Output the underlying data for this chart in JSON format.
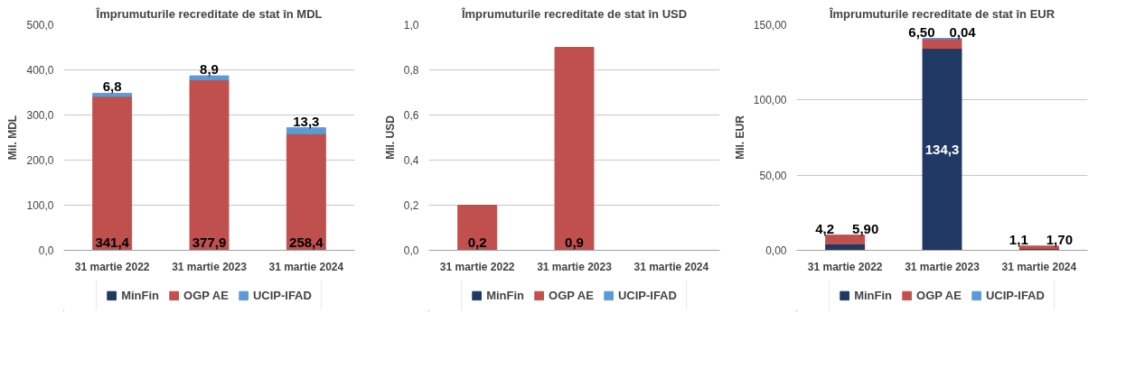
{
  "chart_data": [
    {
      "type": "bar",
      "stacked": true,
      "title": "Împrumuturile recreditate de stat în MDL",
      "ylabel": "Mil. MDL",
      "categories": [
        "31 martie 2022",
        "31 martie 2023",
        "31 martie 2024"
      ],
      "ylim": [
        0,
        500
      ],
      "yticks": [
        {
          "value": 0,
          "label": "0,0"
        },
        {
          "value": 100,
          "label": "100,0"
        },
        {
          "value": 200,
          "label": "200,0"
        },
        {
          "value": 300,
          "label": "300,0"
        },
        {
          "value": 400,
          "label": "400,0"
        },
        {
          "value": 500,
          "label": "500,0"
        }
      ],
      "grid": "y",
      "legend": "bottom",
      "series": [
        {
          "name": "MinFin",
          "color": "#1f3864",
          "values": [
            null,
            null,
            null
          ]
        },
        {
          "name": "OGP AE",
          "color": "#c0504d",
          "values": [
            341.4,
            377.9,
            258.4
          ],
          "value_labels": [
            "341,4",
            "377,9",
            "258,4"
          ]
        },
        {
          "name": "UCIP-IFAD",
          "color": "#5b9bd5",
          "values": [
            6.8,
            8.9,
            13.3
          ],
          "value_labels": [
            "6,8",
            "8,9",
            "13,3"
          ]
        }
      ]
    },
    {
      "type": "bar",
      "stacked": true,
      "title": "Împrumuturile recreditate de stat în USD",
      "ylabel": "Mil. USD",
      "categories": [
        "31 martie 2022",
        "31 martie 2023",
        "31 martie 2024"
      ],
      "ylim": [
        0,
        1
      ],
      "yticks": [
        {
          "value": 0,
          "label": "0,0"
        },
        {
          "value": 0.2,
          "label": "0,2"
        },
        {
          "value": 0.4,
          "label": "0,4"
        },
        {
          "value": 0.6,
          "label": "0,6"
        },
        {
          "value": 0.8,
          "label": "0,8"
        },
        {
          "value": 1,
          "label": "1,0"
        }
      ],
      "grid": "y",
      "legend": "bottom",
      "series": [
        {
          "name": "MinFin",
          "color": "#1f3864",
          "values": [
            null,
            null,
            null
          ]
        },
        {
          "name": "OGP AE",
          "color": "#c0504d",
          "values": [
            0.2,
            0.9,
            null
          ],
          "value_labels": [
            "0,2",
            "0,9",
            null
          ]
        },
        {
          "name": "UCIP-IFAD",
          "color": "#5b9bd5",
          "values": [
            null,
            null,
            null
          ]
        }
      ]
    },
    {
      "type": "bar",
      "stacked": true,
      "title": "Împrumuturile recreditate de stat în EUR",
      "ylabel": "Mil. EUR",
      "categories": [
        "31 martie 2022",
        "31 martie 2023",
        "31 martie 2024"
      ],
      "ylim": [
        0,
        150
      ],
      "yticks": [
        {
          "value": 0,
          "label": "0,00"
        },
        {
          "value": 50,
          "label": "50,00"
        },
        {
          "value": 100,
          "label": "100,00"
        },
        {
          "value": 150,
          "label": "150,00"
        }
      ],
      "grid": "y",
      "legend": "bottom",
      "series": [
        {
          "name": "MinFin",
          "color": "#1f3864",
          "values": [
            4.2,
            134.3,
            1.1
          ],
          "value_labels": [
            "4,2",
            "134,3",
            "1,1"
          ]
        },
        {
          "name": "OGP AE",
          "color": "#c0504d",
          "values": [
            5.9,
            6.5,
            1.7
          ],
          "value_labels": [
            "5,90",
            "6,50",
            "1,70"
          ]
        },
        {
          "name": "UCIP-IFAD",
          "color": "#5b9bd5",
          "values": [
            null,
            0.04,
            null
          ],
          "value_labels": [
            null,
            "0,04",
            null
          ]
        }
      ]
    }
  ]
}
